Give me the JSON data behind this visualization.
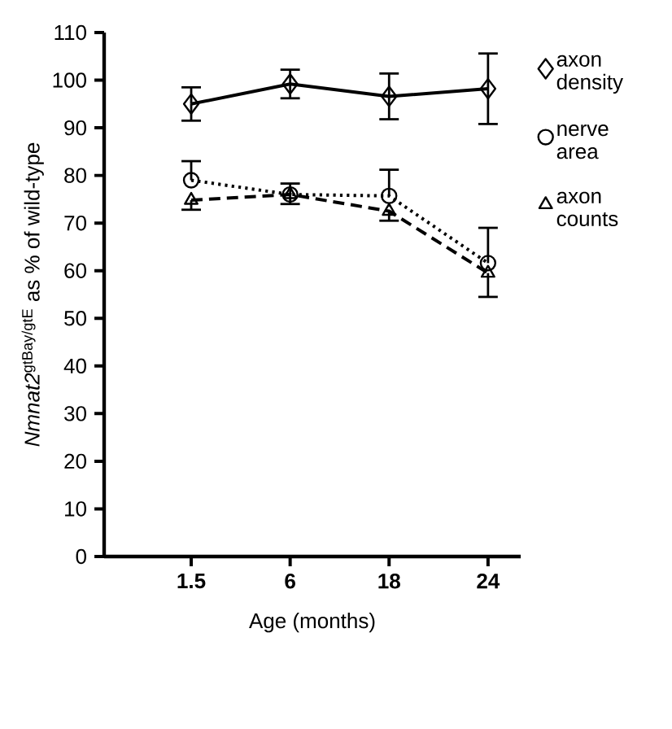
{
  "chart_data": {
    "type": "line",
    "xlabel": "Age (months)",
    "ylabel": "*Nmnat2*$^{gtBay/gtE}$ as % of wild-type",
    "categories": [
      "1.5",
      "6",
      "18",
      "24"
    ],
    "ylim": [
      0,
      110
    ],
    "yticks": [
      0,
      10,
      20,
      30,
      40,
      50,
      60,
      70,
      80,
      90,
      100,
      110
    ],
    "grid": false,
    "legend": "right",
    "series": [
      {
        "name": "axon density",
        "color": "#000000",
        "marker": "diamond",
        "line_style": "solid",
        "values": [
          95,
          99.2,
          96.6,
          98.2
        ],
        "errors": [
          3.5,
          3,
          4.8,
          7.4
        ]
      },
      {
        "name": "nerve area",
        "color": "#000000",
        "marker": "circle",
        "line_style": "dotted",
        "values": [
          79,
          76,
          75.7,
          61.6
        ],
        "errors": [
          [
            79,
            83
          ],
          [
            76,
            78.3
          ],
          [
            75.7,
            81.2
          ],
          [
            61.6,
            69
          ]
        ]
      },
      {
        "name": "axon counts",
        "color": "#000000",
        "marker": "triangle",
        "line_style": "dashed",
        "values": [
          74.8,
          76,
          72.5,
          59.5
        ],
        "errors": [
          [
            72.8,
            74.8
          ],
          [
            74,
            76
          ],
          [
            70.5,
            72.5
          ],
          [
            54.5,
            59.5
          ]
        ]
      }
    ]
  }
}
